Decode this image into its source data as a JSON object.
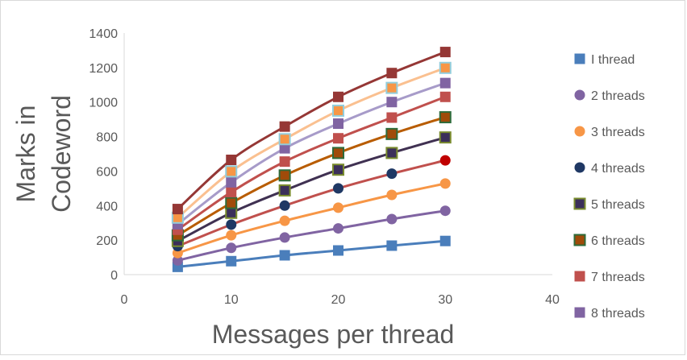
{
  "chart_data": {
    "type": "scatter",
    "title": "",
    "xlabel": "Messages per thread",
    "ylabel_lines": [
      "Marks in",
      "Codeword"
    ],
    "xlim": [
      0,
      40
    ],
    "ylim": [
      0,
      1400
    ],
    "xticks": [
      0,
      10,
      20,
      30,
      40
    ],
    "yticks": [
      0,
      200,
      400,
      600,
      800,
      1000,
      1200,
      1400
    ],
    "grid": false,
    "legend_position": "right",
    "x": [
      5,
      10,
      15,
      20,
      25,
      30
    ],
    "series": [
      {
        "name": "I thread",
        "marker": "square",
        "color": "#4a7ebb",
        "line_color": "#4a7ebb",
        "values": [
          45,
          78,
          112,
          140,
          168,
          195
        ]
      },
      {
        "name": "2 threads",
        "marker": "circle",
        "color": "#8064a2",
        "line_color": "#8064a2",
        "values": [
          82,
          155,
          215,
          268,
          322,
          370
        ]
      },
      {
        "name": "3 threads",
        "marker": "circle",
        "color": "#f79646",
        "line_color": "#f79646",
        "values": [
          125,
          228,
          312,
          388,
          462,
          528
        ]
      },
      {
        "name": "4 threads",
        "marker": "circle",
        "color": "#1f3864",
        "line_color": "#c0504d",
        "values": [
          165,
          290,
          400,
          500,
          585,
          662
        ]
      },
      {
        "name": "5 threads",
        "marker": "square",
        "color": "#3b2f5a",
        "edge": "#7a8c2e",
        "line_color": "#403152",
        "values": [
          195,
          358,
          488,
          608,
          705,
          795
        ]
      },
      {
        "name": "6 threads",
        "marker": "square",
        "color": "#a04b0a",
        "edge": "#2e6b3a",
        "line_color": "#b85c00",
        "values": [
          228,
          415,
          575,
          705,
          815,
          912
        ]
      },
      {
        "name": "7 threads",
        "marker": "square",
        "color": "#c0504d",
        "line_color": "#c0504d",
        "values": [
          260,
          478,
          655,
          790,
          910,
          1030
        ]
      },
      {
        "name": "8 threads",
        "marker": "square",
        "color": "#8064a2",
        "line_color": "#a79bc9",
        "values": [
          292,
          535,
          732,
          875,
          1000,
          1110
        ]
      },
      {
        "name": "",
        "marker": "square",
        "color": "#f79646",
        "edge": "#92cddc",
        "line_color": "#fac090",
        "legend": false,
        "values": [
          330,
          598,
          785,
          950,
          1082,
          1198
        ]
      },
      {
        "name": "",
        "marker": "square",
        "color": "#953735",
        "line_color": "#953735",
        "legend": false,
        "values": [
          380,
          665,
          858,
          1030,
          1168,
          1290
        ]
      }
    ],
    "special_points": [
      {
        "series_index": 3,
        "point_index": 5,
        "color": "#c00000"
      }
    ]
  }
}
